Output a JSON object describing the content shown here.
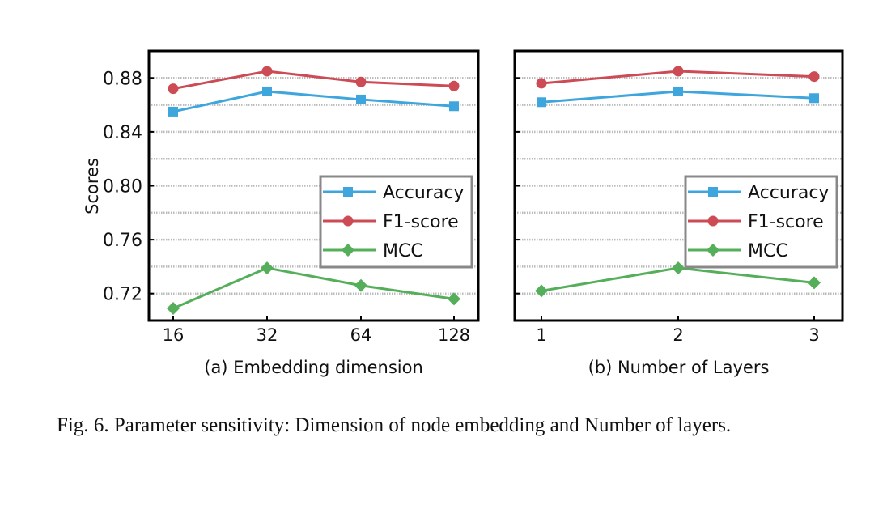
{
  "chart_data": [
    {
      "type": "line",
      "subtitle": "(a) Embedding dimension",
      "xlabel": "(a) Embedding dimension",
      "ylabel": "Scores",
      "categories": [
        "16",
        "32",
        "64",
        "128"
      ],
      "ylim": [
        0.7,
        0.9
      ],
      "yticks": [
        "0.72",
        "0.76",
        "0.80",
        "0.84",
        "0.88"
      ],
      "grid": "horizontal dotted, every 0.02",
      "legend": "center-right",
      "series": [
        {
          "name": "Accuracy",
          "color": "#3ea6dc",
          "marker": "square",
          "values": [
            0.855,
            0.87,
            0.864,
            0.859
          ]
        },
        {
          "name": "F1-score",
          "color": "#cc4b55",
          "marker": "circle",
          "values": [
            0.872,
            0.885,
            0.877,
            0.874
          ]
        },
        {
          "name": "MCC",
          "color": "#55ae5a",
          "marker": "diamond",
          "values": [
            0.709,
            0.739,
            0.726,
            0.716
          ]
        }
      ]
    },
    {
      "type": "line",
      "xlabel": "(b) Number of Layers",
      "categories": [
        "1",
        "2",
        "3"
      ],
      "ylim": [
        0.7,
        0.9
      ],
      "grid": "horizontal dotted, every 0.02",
      "legend": "center-right",
      "series": [
        {
          "name": "Accuracy",
          "color": "#3ea6dc",
          "marker": "square",
          "values": [
            0.862,
            0.87,
            0.865
          ]
        },
        {
          "name": "F1-score",
          "color": "#cc4b55",
          "marker": "circle",
          "values": [
            0.876,
            0.885,
            0.881
          ]
        },
        {
          "name": "MCC",
          "color": "#55ae5a",
          "marker": "diamond",
          "values": [
            0.722,
            0.739,
            0.728
          ]
        }
      ]
    }
  ],
  "caption": "Fig. 6.  Parameter sensitivity: Dimension of node embedding and Number of layers."
}
